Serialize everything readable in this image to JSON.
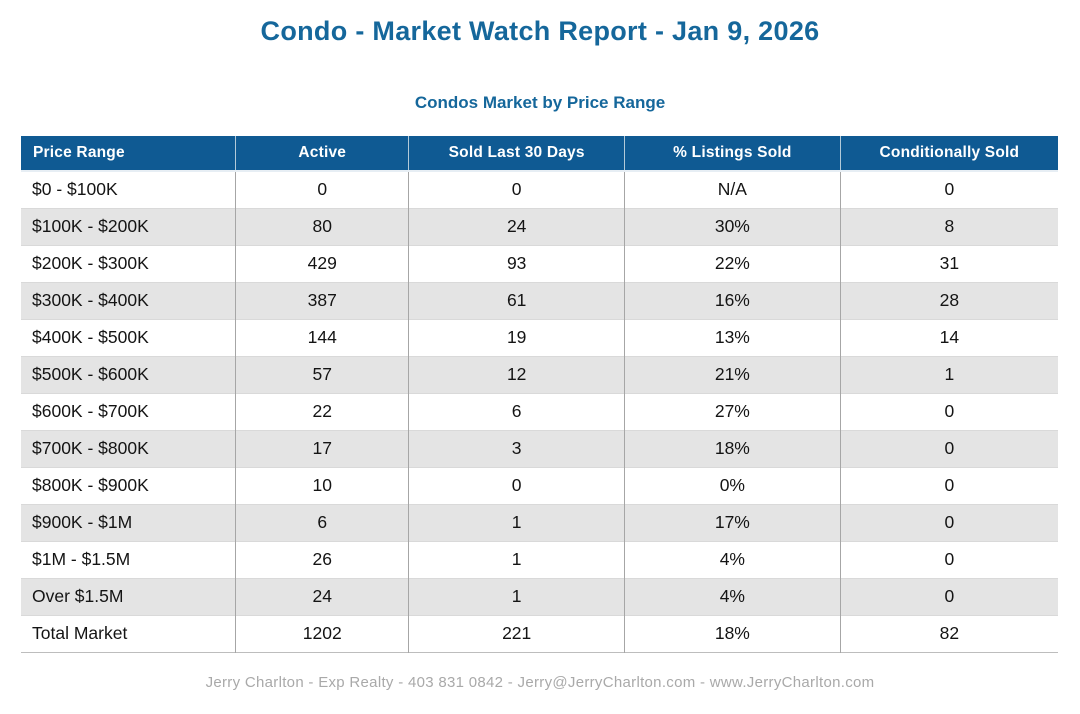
{
  "report": {
    "title": "Condo - Market Watch Report - Jan 9, 2026",
    "subtitle": "Condos Market by Price Range",
    "footer": "Jerry Charlton - Exp Realty - 403 831 0842 - Jerry@JerryCharlton.com - www.JerryCharlton.com"
  },
  "colors": {
    "accent_blue": "#15679b",
    "header_bg": "#0f5a93",
    "header_text": "#ffffff",
    "row_alt_bg": "#e4e4e4",
    "body_text": "#141414",
    "footer_text": "#a9a9a9"
  },
  "table": {
    "columns": [
      "Price Range",
      "Active",
      "Sold Last 30 Days",
      "% Listings Sold",
      "Conditionally Sold"
    ],
    "rows": [
      {
        "cells": [
          "$0 - $100K",
          "0",
          "0",
          "N/A",
          "0"
        ]
      },
      {
        "cells": [
          "$100K - $200K",
          "80",
          "24",
          "30%",
          "8"
        ]
      },
      {
        "cells": [
          "$200K - $300K",
          "429",
          "93",
          "22%",
          "31"
        ]
      },
      {
        "cells": [
          "$300K - $400K",
          "387",
          "61",
          "16%",
          "28"
        ]
      },
      {
        "cells": [
          "$400K - $500K",
          "144",
          "19",
          "13%",
          "14"
        ]
      },
      {
        "cells": [
          "$500K - $600K",
          "57",
          "12",
          "21%",
          "1"
        ]
      },
      {
        "cells": [
          "$600K - $700K",
          "22",
          "6",
          "27%",
          "0"
        ]
      },
      {
        "cells": [
          "$700K - $800K",
          "17",
          "3",
          "18%",
          "0"
        ]
      },
      {
        "cells": [
          "$800K - $900K",
          "10",
          "0",
          "0%",
          "0"
        ]
      },
      {
        "cells": [
          "$900K - $1M",
          "6",
          "1",
          "17%",
          "0"
        ]
      },
      {
        "cells": [
          "$1M - $1.5M",
          "26",
          "1",
          "4%",
          "0"
        ]
      },
      {
        "cells": [
          "Over $1.5M",
          "24",
          "1",
          "4%",
          "0"
        ]
      },
      {
        "cells": [
          "Total Market",
          "1202",
          "221",
          "18%",
          "82"
        ]
      }
    ]
  }
}
